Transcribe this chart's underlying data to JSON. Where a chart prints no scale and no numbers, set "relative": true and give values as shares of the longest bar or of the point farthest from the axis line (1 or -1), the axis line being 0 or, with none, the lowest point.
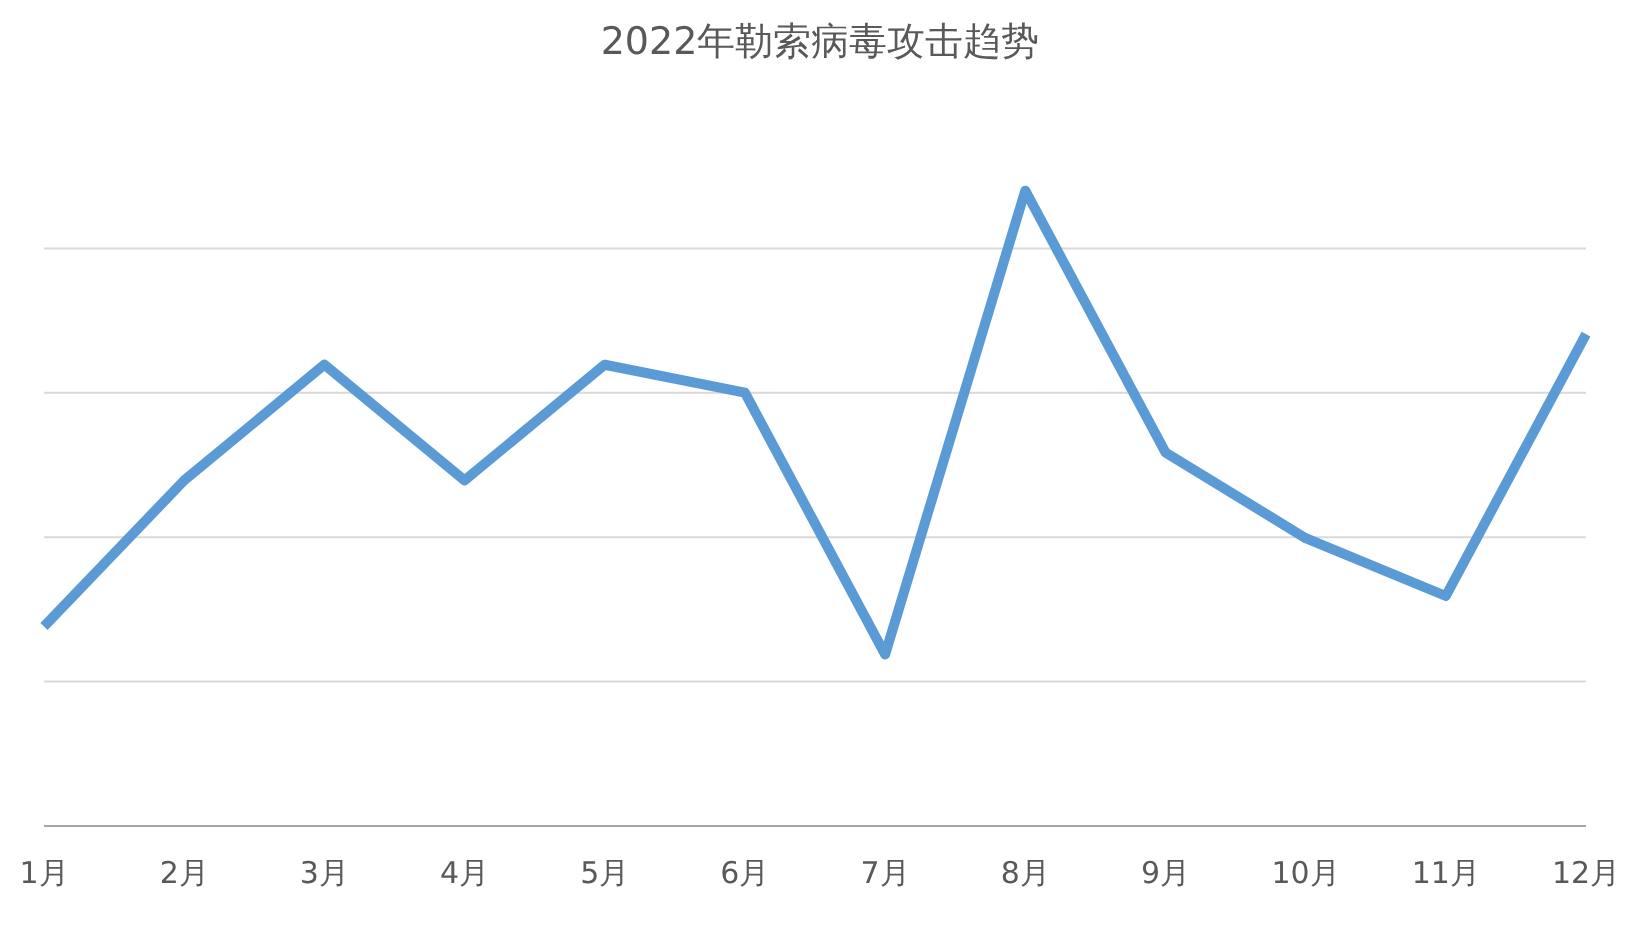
{
  "chart_data": {
    "type": "line",
    "title": "2022年勒索病毒攻击趋势",
    "relative": true,
    "grid": "y",
    "marker": "none",
    "line_style": "solid",
    "categories": [
      "1月",
      "2月",
      "3月",
      "4月",
      "5月",
      "6月",
      "7月",
      "8月",
      "9月",
      "10月",
      "11月",
      "12月"
    ],
    "series": [
      {
        "color": "#5b9bd5",
        "values": [
          0.314,
          0.544,
          0.726,
          0.544,
          0.726,
          0.682,
          0.27,
          1,
          0.588,
          0.453,
          0.362,
          0.774
        ]
      }
    ]
  }
}
